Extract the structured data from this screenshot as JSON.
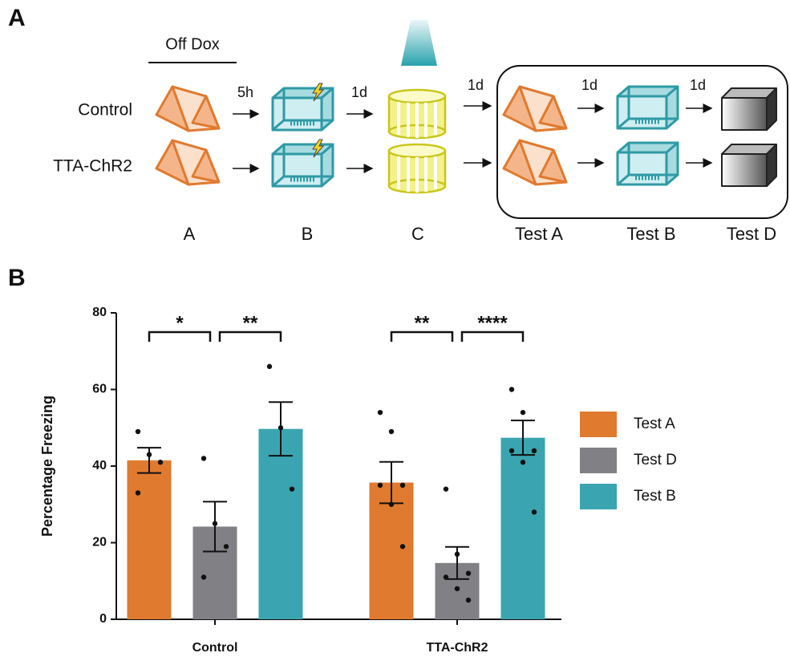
{
  "panel_labels": [
    "A",
    "B"
  ],
  "diagram": {
    "off_dox": "Off Dox",
    "groups": [
      "Control",
      "TTA-ChR2"
    ],
    "intervals": [
      "5h",
      "1d",
      "1d",
      "1d",
      "1d"
    ],
    "contexts": [
      "A",
      "B",
      "C",
      "Test A",
      "Test B",
      "Test D"
    ]
  },
  "chart_data": {
    "type": "bar",
    "ylabel": "Percentage Freezing",
    "categories": [
      "Control",
      "TTA-ChR2"
    ],
    "series": [
      {
        "name": "Test A",
        "color": "#e07a2f",
        "values": [
          41.5,
          35.7
        ],
        "errors": [
          3.3,
          5.4
        ],
        "points": [
          [
            49,
            43,
            41,
            33
          ],
          [
            54,
            49,
            35,
            35,
            30,
            19
          ]
        ]
      },
      {
        "name": "Test D",
        "color": "#808085",
        "values": [
          24.2,
          14.7
        ],
        "errors": [
          6.5,
          4.2
        ],
        "points": [
          [
            42,
            25,
            19,
            11
          ],
          [
            34,
            17,
            12,
            11,
            8,
            5
          ]
        ]
      },
      {
        "name": "Test B",
        "color": "#3aa5b0",
        "values": [
          49.7,
          47.4
        ],
        "errors": [
          7,
          4.5
        ],
        "points": [
          [
            66,
            50,
            34
          ],
          [
            60,
            54,
            44,
            44,
            41,
            28
          ]
        ]
      }
    ],
    "annotations": [
      "*",
      "**",
      "**",
      "****"
    ],
    "ylim": [
      0,
      80
    ],
    "yticks": [
      0,
      20,
      40,
      60,
      80
    ],
    "legend": "right"
  }
}
